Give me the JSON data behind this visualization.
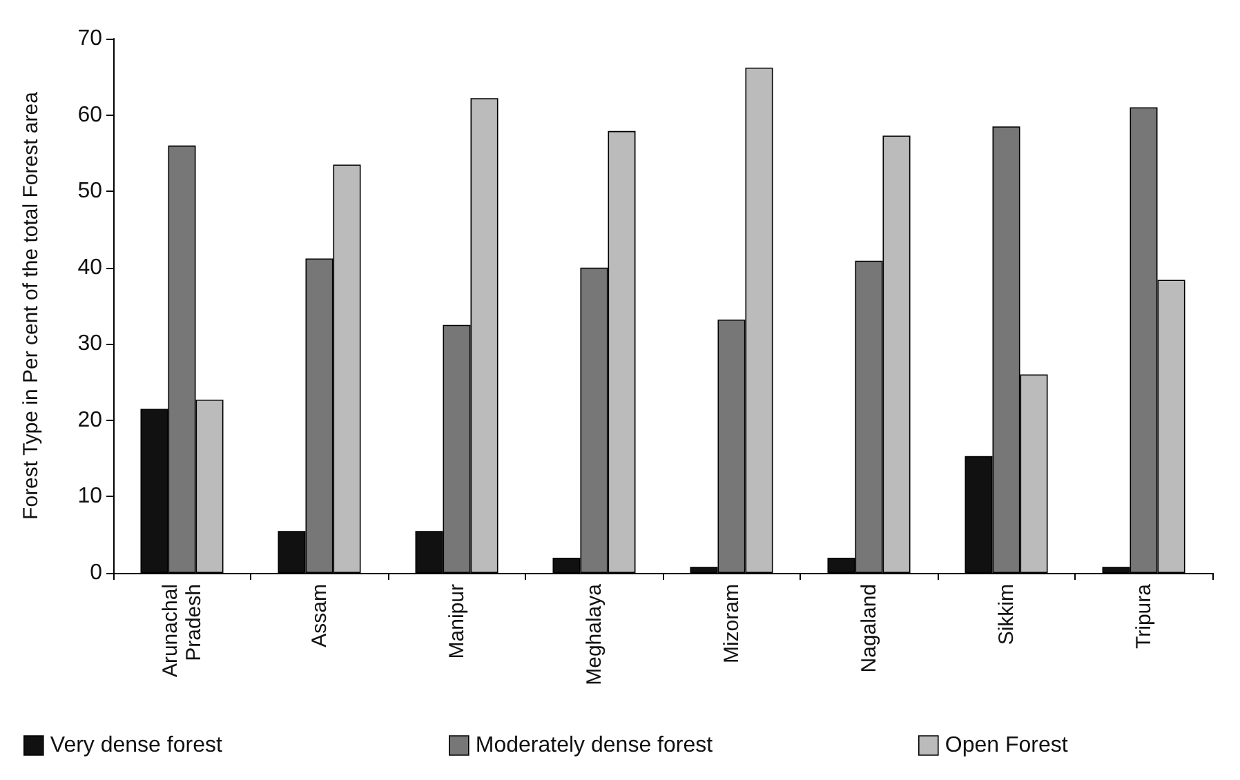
{
  "chart_data": {
    "type": "bar",
    "ylabel": "Forest Type in Per cent of the total Forest area",
    "categories": [
      "Arunachal Pradesh",
      "Assam",
      "Manipur",
      "Meghalaya",
      "Mizoram",
      "Nagaland",
      "Sikkim",
      "Tripura"
    ],
    "series": [
      {
        "name": "Very dense forest",
        "color": "#111111",
        "values": [
          21.5,
          5.5,
          5.5,
          2,
          0.8,
          2,
          15.3,
          0.8
        ]
      },
      {
        "name": "Moderately dense forest",
        "color": "#777777",
        "values": [
          56,
          41.2,
          32.5,
          40,
          33.2,
          40.9,
          58.5,
          61
        ]
      },
      {
        "name": "Open Forest",
        "color": "#bbbbbb",
        "values": [
          22.7,
          53.5,
          62.2,
          57.9,
          66.2,
          57.3,
          26,
          38.4
        ]
      }
    ],
    "ylim": [
      0,
      70
    ],
    "yticks": [
      0,
      10,
      20,
      30,
      40,
      50,
      60,
      70
    ],
    "grid": false,
    "legend": "bottom"
  }
}
